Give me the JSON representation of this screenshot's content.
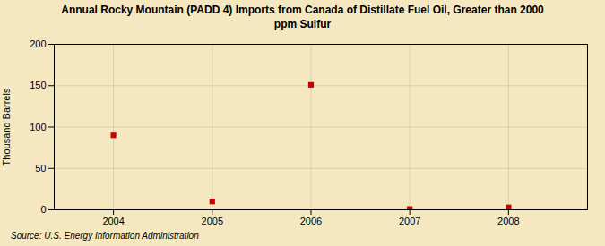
{
  "chart_data": {
    "type": "scatter",
    "title": "Annual Rocky Mountain (PADD 4) Imports from Canada of Distillate Fuel Oil, Greater than 2000\nppm Sulfur",
    "ylabel": "Thousand Barrels",
    "source": "Source: U.S. Energy Information Administration",
    "x": [
      2004,
      2005,
      2006,
      2007,
      2008
    ],
    "values": [
      90,
      10,
      151,
      1,
      3
    ],
    "color": "#cc0000",
    "marker": "square",
    "xlim": [
      2003.4,
      2008.8
    ],
    "ylim": [
      0,
      200
    ],
    "xticks": [
      2004,
      2005,
      2006,
      2007,
      2008
    ],
    "yticks": [
      0,
      50,
      100,
      150,
      200
    ],
    "grid": true
  }
}
